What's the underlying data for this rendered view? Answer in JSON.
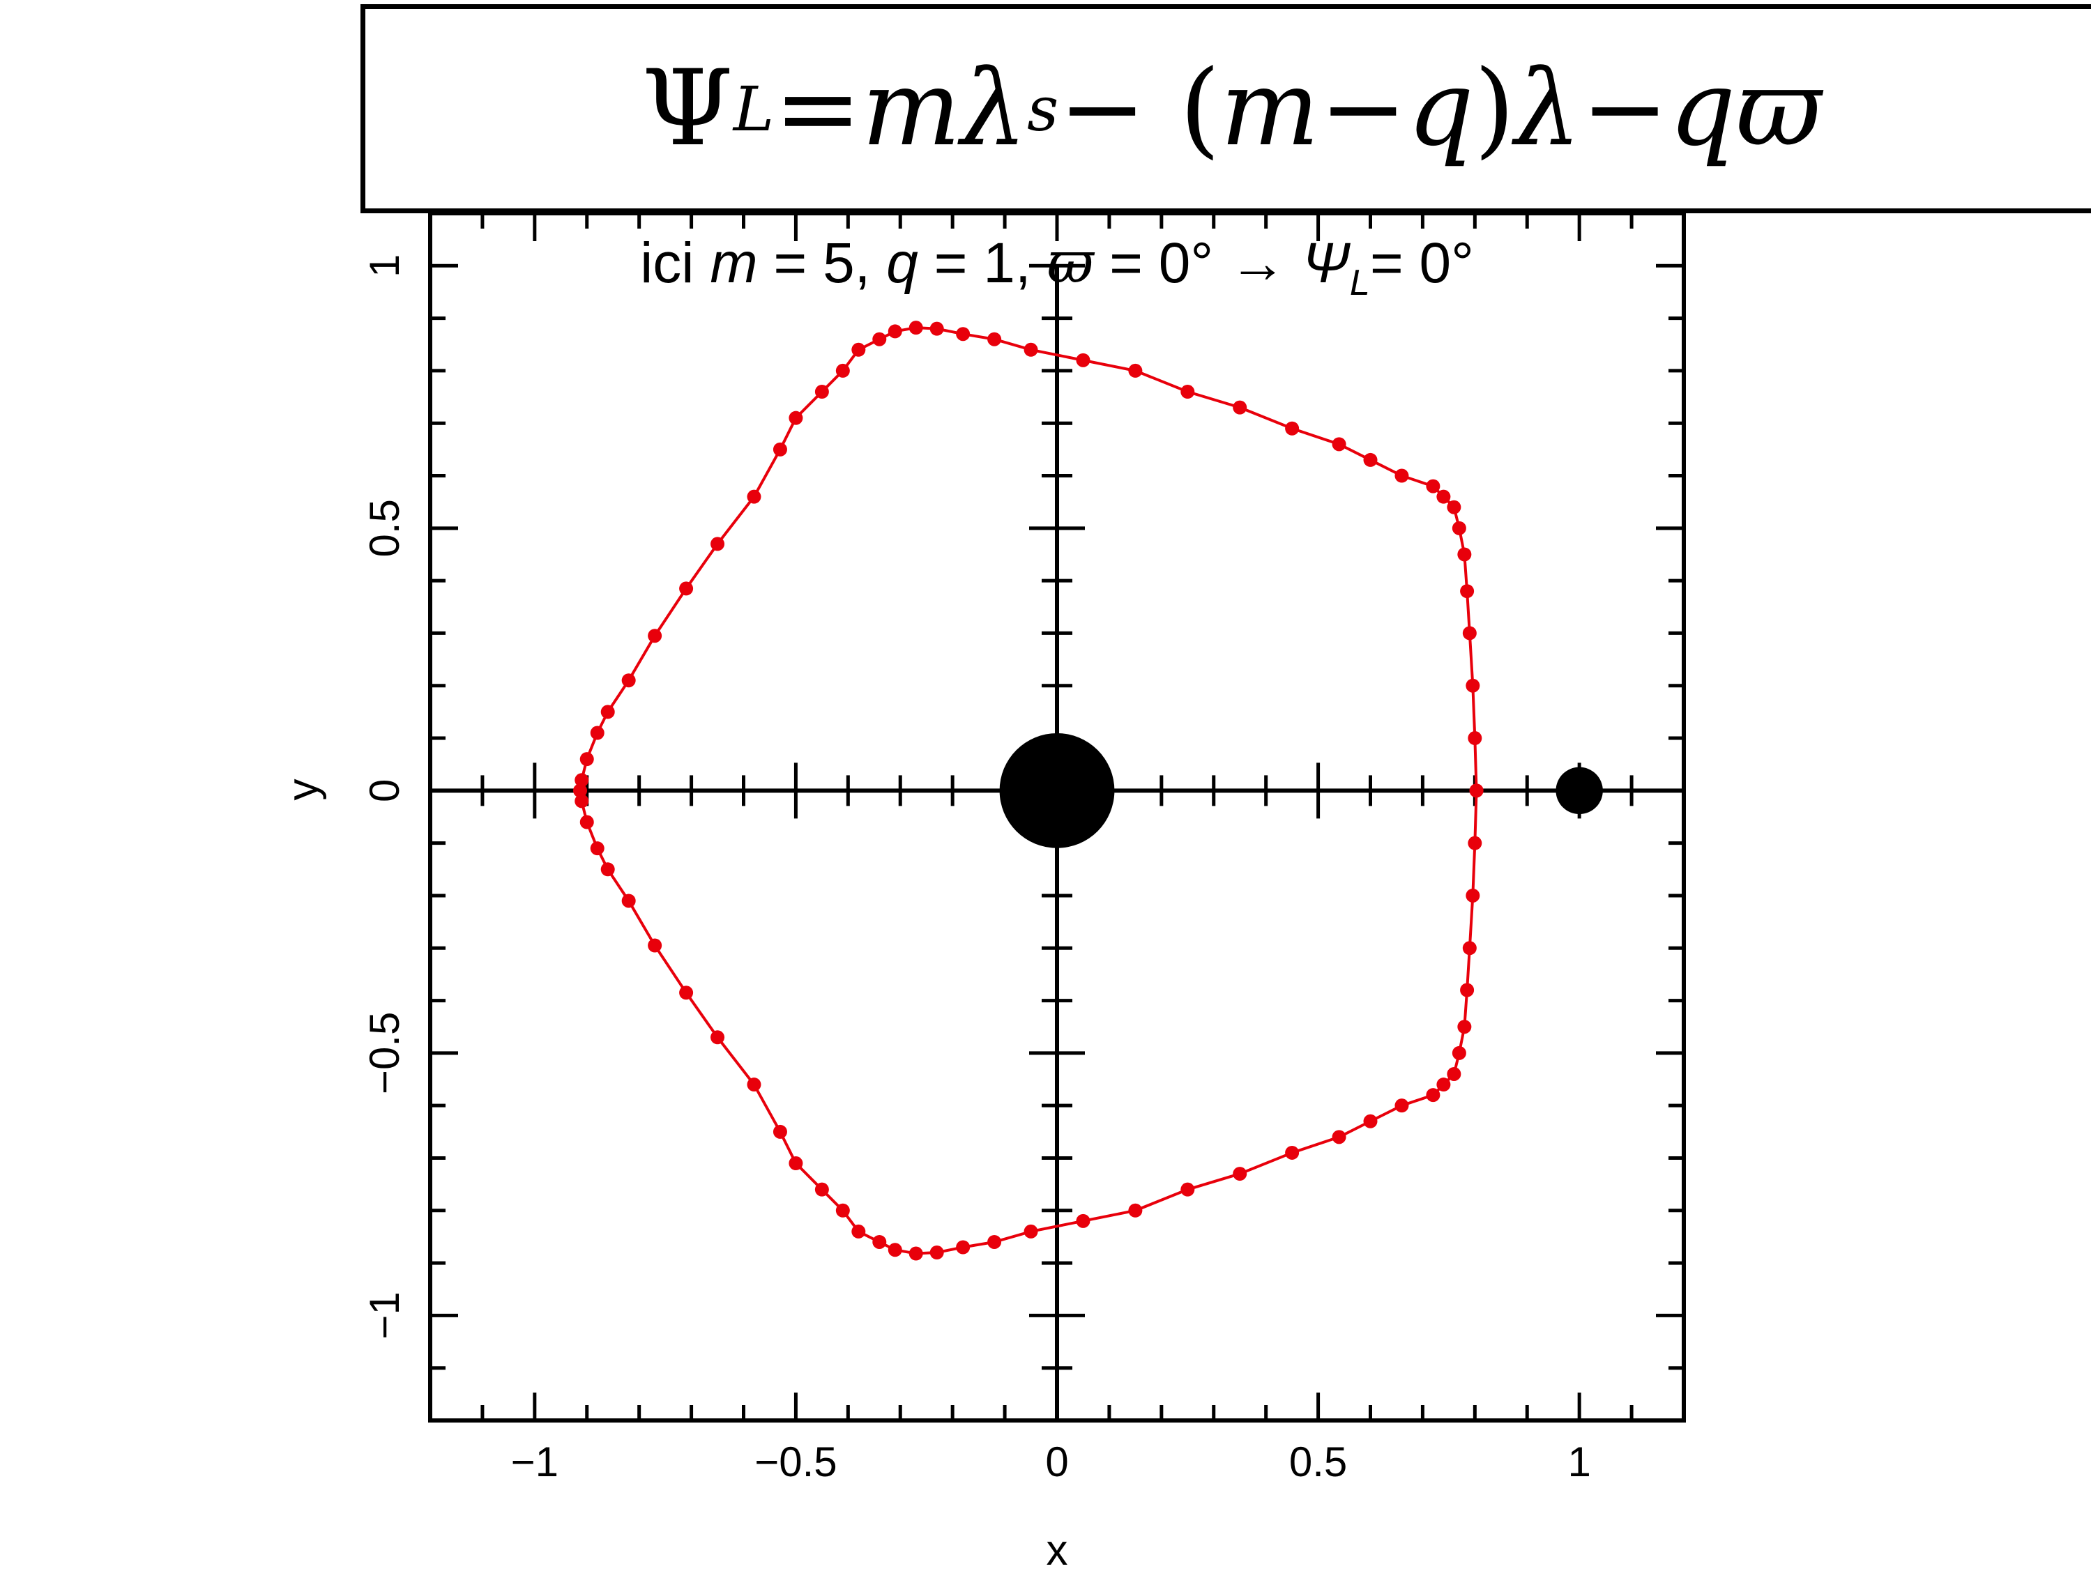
{
  "formula": {
    "lhs_symbol": "Ψ",
    "lhs_sub": "L",
    "equals": " = ",
    "t1": "m",
    "t2": "λ",
    "t2_sub": "s",
    "t3": " − (",
    "t4": "m",
    "t5": " − ",
    "t6": "q",
    "t7": ")",
    "t8": "λ",
    "t9": " − ",
    "t10": "q",
    "t11": "ϖ"
  },
  "subtitle": {
    "p1": "ici ",
    "m": "m",
    "p2": " = 5, ",
    "q": "q",
    "p3": " = 1, ",
    "w": "ϖ",
    "p4": " = 0° → ",
    "psi": "Ψ",
    "psi_sub": "L",
    "p5": "= 0°"
  },
  "chart_data": {
    "type": "scatter",
    "xlabel": "x",
    "ylabel": "y",
    "xlim": [
      -1.2,
      1.2
    ],
    "ylim": [
      -1.2,
      1.1
    ],
    "x_ticks": [
      -1,
      -0.5,
      0,
      0.5,
      1
    ],
    "x_tick_labels": [
      "−1",
      "−0.5",
      "0",
      "0.5",
      "1"
    ],
    "y_ticks": [
      -1,
      -0.5,
      0,
      0.5,
      1
    ],
    "y_tick_labels": [
      "−1",
      "−0.5",
      "0",
      "0.5",
      "1"
    ],
    "minor_tick_step": 0.1,
    "grid": false,
    "colors": {
      "orbit": "#e8000b",
      "body": "#000000",
      "axes": "#000000"
    },
    "series": [
      {
        "marker": "dots-connected",
        "color": "#e8000b",
        "points": [
          [
            0.803,
            0.0
          ],
          [
            0.8,
            0.1
          ],
          [
            0.796,
            0.2
          ],
          [
            0.79,
            0.3
          ],
          [
            0.785,
            0.38
          ],
          [
            0.78,
            0.45
          ],
          [
            0.77,
            0.5
          ],
          [
            0.76,
            0.54
          ],
          [
            0.74,
            0.56
          ],
          [
            0.72,
            0.58
          ],
          [
            0.66,
            0.6
          ],
          [
            0.6,
            0.63
          ],
          [
            0.54,
            0.66
          ],
          [
            0.45,
            0.69
          ],
          [
            0.35,
            0.73
          ],
          [
            0.25,
            0.76
          ],
          [
            0.15,
            0.8
          ],
          [
            0.05,
            0.82
          ],
          [
            -0.05,
            0.84
          ],
          [
            -0.12,
            0.86
          ],
          [
            -0.18,
            0.87
          ],
          [
            -0.23,
            0.88
          ],
          [
            -0.27,
            0.882
          ],
          [
            -0.31,
            0.875
          ],
          [
            -0.34,
            0.86
          ],
          [
            -0.38,
            0.84
          ],
          [
            -0.41,
            0.8
          ],
          [
            -0.45,
            0.76
          ],
          [
            -0.5,
            0.71
          ],
          [
            -0.53,
            0.65
          ],
          [
            -0.58,
            0.56
          ],
          [
            -0.65,
            0.47
          ],
          [
            -0.71,
            0.385
          ],
          [
            -0.77,
            0.295
          ],
          [
            -0.82,
            0.21
          ],
          [
            -0.86,
            0.15
          ],
          [
            -0.88,
            0.11
          ],
          [
            -0.9,
            0.06
          ],
          [
            -0.91,
            0.02
          ],
          [
            -0.913,
            0.0
          ],
          [
            -0.91,
            -0.02
          ],
          [
            -0.9,
            -0.06
          ],
          [
            -0.88,
            -0.11
          ],
          [
            -0.86,
            -0.15
          ],
          [
            -0.82,
            -0.21
          ],
          [
            -0.77,
            -0.295
          ],
          [
            -0.71,
            -0.385
          ],
          [
            -0.65,
            -0.47
          ],
          [
            -0.58,
            -0.56
          ],
          [
            -0.53,
            -0.65
          ],
          [
            -0.5,
            -0.71
          ],
          [
            -0.45,
            -0.76
          ],
          [
            -0.41,
            -0.8
          ],
          [
            -0.38,
            -0.84
          ],
          [
            -0.34,
            -0.86
          ],
          [
            -0.31,
            -0.875
          ],
          [
            -0.27,
            -0.882
          ],
          [
            -0.23,
            -0.88
          ],
          [
            -0.18,
            -0.87
          ],
          [
            -0.12,
            -0.86
          ],
          [
            -0.05,
            -0.84
          ],
          [
            0.05,
            -0.82
          ],
          [
            0.15,
            -0.8
          ],
          [
            0.25,
            -0.76
          ],
          [
            0.35,
            -0.73
          ],
          [
            0.45,
            -0.69
          ],
          [
            0.54,
            -0.66
          ],
          [
            0.6,
            -0.63
          ],
          [
            0.66,
            -0.6
          ],
          [
            0.72,
            -0.58
          ],
          [
            0.74,
            -0.56
          ],
          [
            0.76,
            -0.54
          ],
          [
            0.77,
            -0.5
          ],
          [
            0.78,
            -0.45
          ],
          [
            0.785,
            -0.38
          ],
          [
            0.79,
            -0.3
          ],
          [
            0.796,
            -0.2
          ],
          [
            0.8,
            -0.1
          ],
          [
            0.803,
            0.0
          ]
        ]
      }
    ],
    "bodies": [
      {
        "name": "primary",
        "x": 0,
        "y": 0,
        "radius": 0.11,
        "color": "#000000"
      },
      {
        "name": "secondary",
        "x": 1,
        "y": 0,
        "radius": 0.045,
        "color": "#000000"
      }
    ]
  }
}
